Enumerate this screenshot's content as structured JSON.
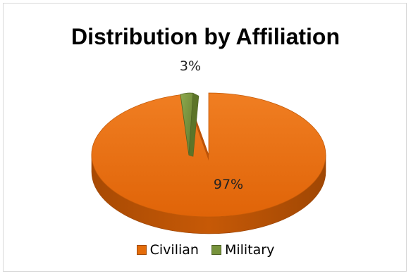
{
  "chart_data": {
    "type": "pie",
    "title": "Distribution by Affiliation",
    "categories": [
      "Civilian",
      "Military"
    ],
    "values": [
      97,
      3
    ],
    "data_labels": [
      "97%",
      "3%"
    ],
    "colors": [
      "#E46C0A",
      "#77933C"
    ],
    "style": "3d-exploded",
    "legend_position": "bottom"
  }
}
